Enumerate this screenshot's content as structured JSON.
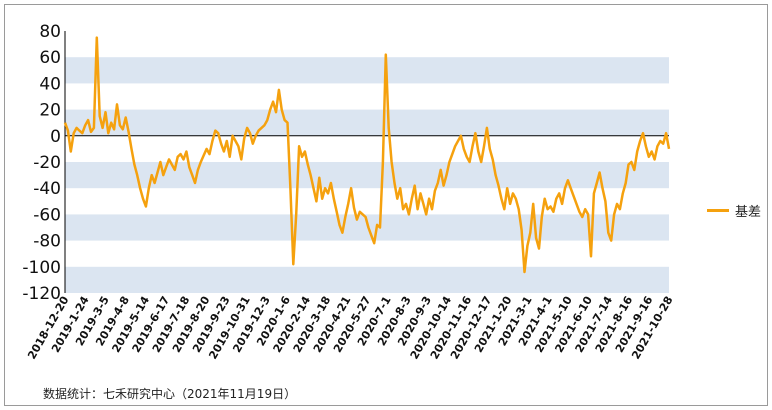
{
  "chart_data": {
    "type": "line",
    "title": "",
    "xlabel": "",
    "ylabel": "",
    "ylim": [
      -120,
      80
    ],
    "yticks": [
      80,
      60,
      40,
      20,
      0,
      -20,
      -40,
      -60,
      -80,
      -100,
      -120
    ],
    "grid": "alternating horizontal bands",
    "legend_position": "right",
    "x_tick_labels": [
      "2018-12-20",
      "2019-1-24",
      "2019-3-5",
      "2019-4-8",
      "2019-5-14",
      "2019-6-17",
      "2019-7-18",
      "2019-8-20",
      "2019-9-23",
      "2019-10-31",
      "2019-12-3",
      "2020-1-6",
      "2020-2-14",
      "2020-3-18",
      "2020-4-21",
      "2020-5-27",
      "2020-7-1",
      "2020-8-3",
      "2020-9-3",
      "2020-10-14",
      "2020-11-16",
      "2020-12-17",
      "2021-1-20",
      "2021-3-1",
      "2021-4-1",
      "2021-5-10",
      "2021-6-10",
      "2021-7-14",
      "2021-8-16",
      "2021-9-16",
      "2021-10-28"
    ],
    "series": [
      {
        "name": "基差",
        "color": "#F5A10E",
        "values": [
          10,
          4,
          -12,
          2,
          6,
          4,
          2,
          8,
          12,
          3,
          6,
          75,
          15,
          6,
          18,
          2,
          10,
          5,
          24,
          8,
          5,
          14,
          3,
          -10,
          -22,
          -30,
          -40,
          -48,
          -54,
          -40,
          -30,
          -36,
          -28,
          -20,
          -30,
          -24,
          -18,
          -22,
          -26,
          -16,
          -14,
          -18,
          -12,
          -24,
          -30,
          -36,
          -26,
          -20,
          -15,
          -10,
          -14,
          -4,
          4,
          2,
          -6,
          -12,
          -4,
          -16,
          0,
          -4,
          -8,
          -18,
          -2,
          6,
          2,
          -6,
          0,
          4,
          6,
          8,
          12,
          20,
          26,
          18,
          35,
          20,
          12,
          10,
          -40,
          -98,
          -60,
          -8,
          -16,
          -12,
          -22,
          -30,
          -40,
          -50,
          -32,
          -48,
          -40,
          -44,
          -36,
          -48,
          -58,
          -68,
          -74,
          -62,
          -52,
          -40,
          -55,
          -64,
          -58,
          -60,
          -62,
          -70,
          -76,
          -82,
          -68,
          -70,
          -20,
          62,
          6,
          -20,
          -36,
          -48,
          -40,
          -56,
          -52,
          -60,
          -48,
          -38,
          -56,
          -44,
          -52,
          -60,
          -48,
          -56,
          -42,
          -36,
          -26,
          -38,
          -30,
          -20,
          -14,
          -8,
          -4,
          0,
          -10,
          -16,
          -20,
          -8,
          2,
          -12,
          -20,
          -8,
          6,
          -10,
          -18,
          -30,
          -38,
          -48,
          -56,
          -40,
          -52,
          -44,
          -48,
          -56,
          -72,
          -104,
          -84,
          -74,
          -52,
          -78,
          -86,
          -62,
          -48,
          -56,
          -54,
          -58,
          -48,
          -44,
          -52,
          -40,
          -34,
          -40,
          -46,
          -52,
          -58,
          -62,
          -56,
          -60,
          -92,
          -44,
          -36,
          -28,
          -40,
          -50,
          -74,
          -80,
          -60,
          -52,
          -56,
          -44,
          -36,
          -22,
          -20,
          -26,
          -12,
          -4,
          2,
          -8,
          -16,
          -12,
          -18,
          -8,
          -4,
          -6,
          2,
          -10
        ]
      }
    ]
  },
  "legend": {
    "label": "基差"
  },
  "source_note": "数据统计：七禾研究中心（2021年11月19日）"
}
